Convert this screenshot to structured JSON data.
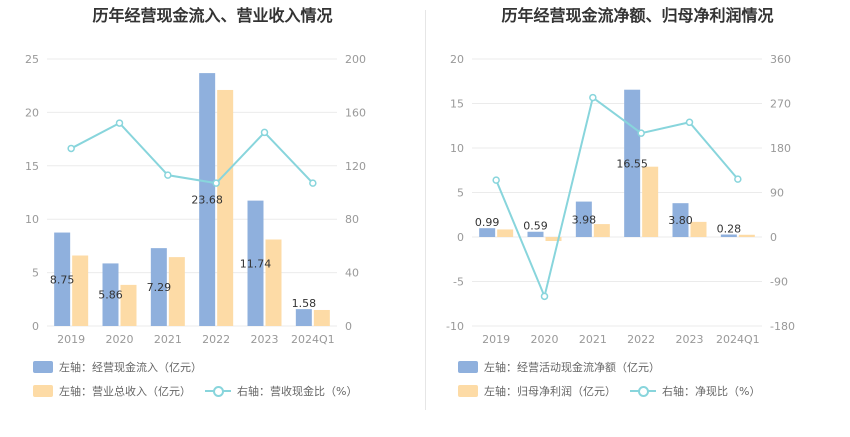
{
  "charts": [
    {
      "title": "历年经营现金流入、营业收入情况",
      "legend": {
        "series1": "左轴：经营现金流入（亿元）",
        "series2": "左轴：营业总收入（亿元）",
        "series3": "右轴：营收现金比（%）"
      }
    },
    {
      "title": "历年经营现金流净额、归母净利润情况",
      "legend": {
        "series1": "左轴：经营活动现金流净额（亿元）",
        "series2": "左轴：归母净利润（亿元）",
        "series3": "右轴：净现比（%）"
      }
    }
  ],
  "chart_data": [
    {
      "type": "bar",
      "title": "历年经营现金流入、营业收入情况",
      "categories": [
        "2019",
        "2020",
        "2021",
        "2022",
        "2023",
        "2024Q1"
      ],
      "y_left": {
        "min": 0,
        "max": 25,
        "ticks": [
          0,
          5,
          10,
          15,
          20,
          25
        ]
      },
      "y_right": {
        "min": 0,
        "max": 200,
        "ticks": [
          0,
          40,
          80,
          120,
          160,
          200
        ]
      },
      "series": [
        {
          "name": "左轴：经营现金流入（亿元）",
          "type": "bar",
          "axis": "left",
          "color": "#8fb0dd",
          "values": [
            8.75,
            5.86,
            7.29,
            23.68,
            11.74,
            1.58
          ],
          "labels": [
            "8.75",
            "5.86",
            "7.29",
            "23.68",
            "11.74",
            "1.58"
          ]
        },
        {
          "name": "左轴：营业总收入（亿元）",
          "type": "bar",
          "axis": "left",
          "color": "#fddba6",
          "values": [
            6.6,
            3.85,
            6.45,
            22.1,
            8.1,
            1.5
          ]
        },
        {
          "name": "右轴：营收现金比（%）",
          "type": "line",
          "axis": "right",
          "color": "#88d5dc",
          "values": [
            133,
            152,
            113,
            107,
            145,
            107
          ]
        }
      ],
      "grid": true
    },
    {
      "type": "bar",
      "title": "历年经营现金流净额、归母净利润情况",
      "categories": [
        "2019",
        "2020",
        "2021",
        "2022",
        "2023",
        "2024Q1"
      ],
      "y_left": {
        "min": -10,
        "max": 20,
        "ticks": [
          -10,
          -5,
          0,
          5,
          10,
          15,
          20
        ]
      },
      "y_right": {
        "min": -180,
        "max": 360,
        "ticks": [
          -180,
          -90,
          0,
          90,
          180,
          270,
          360
        ]
      },
      "series": [
        {
          "name": "左轴：经营活动现金流净额（亿元）",
          "type": "bar",
          "axis": "left",
          "color": "#8fb0dd",
          "values": [
            0.99,
            0.59,
            3.98,
            16.55,
            3.8,
            0.28
          ],
          "labels": [
            "0.99",
            "0.59",
            "3.98",
            "16.55",
            "3.80",
            "0.28"
          ]
        },
        {
          "name": "左轴：归母净利润（亿元）",
          "type": "bar",
          "axis": "left",
          "color": "#fddba6",
          "values": [
            0.85,
            -0.45,
            1.45,
            7.9,
            1.7,
            0.25
          ]
        },
        {
          "name": "右轴：净现比（%）",
          "type": "line",
          "axis": "right",
          "color": "#88d5dc",
          "values": [
            115,
            -120,
            282,
            210,
            232,
            117
          ]
        }
      ],
      "grid": true
    }
  ]
}
